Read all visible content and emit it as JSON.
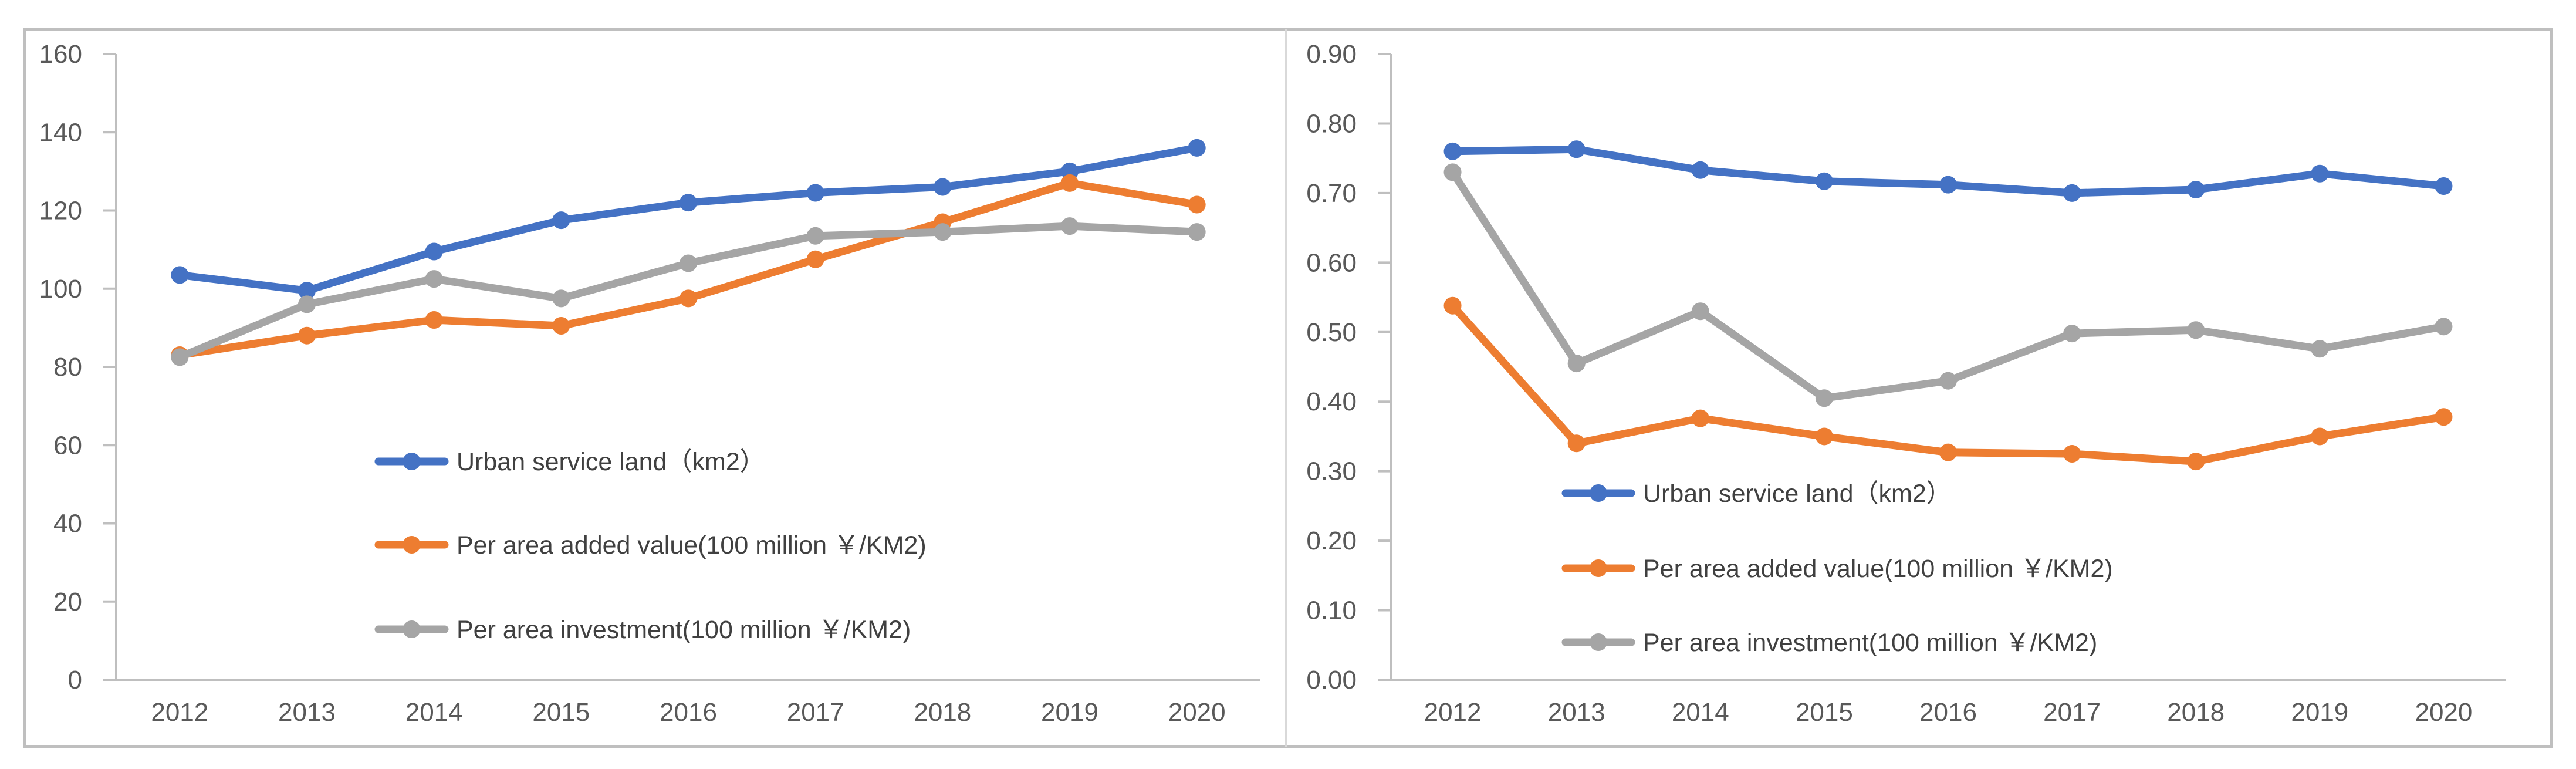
{
  "chart_data": [
    {
      "type": "line",
      "title": "",
      "xlabel": "",
      "ylabel": "",
      "categories": [
        "2012",
        "2013",
        "2014",
        "2015",
        "2016",
        "2017",
        "2018",
        "2019",
        "2020"
      ],
      "ylim": [
        0,
        160
      ],
      "yticks": [
        "0",
        "20",
        "40",
        "60",
        "80",
        "100",
        "120",
        "140",
        "160"
      ],
      "grid": false,
      "legend_position": "center-right",
      "series": [
        {
          "name": "Urban service land（km2）",
          "color": "#4472C4",
          "values": [
            103.5,
            99.5,
            109.5,
            117.5,
            122.0,
            124.5,
            126.0,
            130.0,
            136.0
          ]
        },
        {
          "name": "Per area added value(100 million ￥/KM2)",
          "color": "#ED7D31",
          "values": [
            83.0,
            88.0,
            92.0,
            90.5,
            97.5,
            107.5,
            117.0,
            127.0,
            121.5
          ]
        },
        {
          "name": "Per area investment(100 million ￥/KM2)",
          "color": "#A5A5A5",
          "values": [
            82.5,
            96.0,
            102.5,
            97.5,
            106.5,
            113.5,
            114.5,
            116.0,
            114.5
          ]
        }
      ]
    },
    {
      "type": "line",
      "title": "",
      "xlabel": "",
      "ylabel": "",
      "categories": [
        "2012",
        "2013",
        "2014",
        "2015",
        "2016",
        "2017",
        "2018",
        "2019",
        "2020"
      ],
      "ylim": [
        0,
        0.9
      ],
      "yticks": [
        "0.00",
        "0.10",
        "0.20",
        "0.30",
        "0.40",
        "0.50",
        "0.60",
        "0.70",
        "0.80",
        "0.90"
      ],
      "grid": false,
      "legend_position": "bottom-left",
      "series": [
        {
          "name": "Urban service land（km2）",
          "color": "#4472C4",
          "values": [
            0.76,
            0.763,
            0.733,
            0.717,
            0.712,
            0.7,
            0.705,
            0.728,
            0.71
          ]
        },
        {
          "name": "Per area added value(100 million ￥/KM2)",
          "color": "#ED7D31",
          "values": [
            0.538,
            0.34,
            0.376,
            0.35,
            0.327,
            0.325,
            0.314,
            0.35,
            0.378
          ]
        },
        {
          "name": "Per area investment(100 million ￥/KM2)",
          "color": "#A5A5A5",
          "values": [
            0.73,
            0.455,
            0.53,
            0.405,
            0.43,
            0.498,
            0.503,
            0.476,
            0.508
          ]
        }
      ]
    }
  ]
}
